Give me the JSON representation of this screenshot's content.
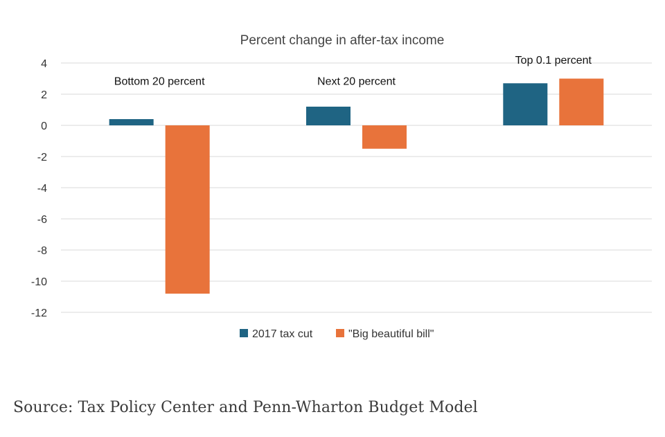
{
  "chart_data": {
    "type": "bar",
    "title": "Percent change in after-tax income",
    "categories": [
      "Bottom 20 percent",
      "Next 20 percent",
      "Top 0.1 percent"
    ],
    "series": [
      {
        "name": "2017 tax cut",
        "color": "#1f6483",
        "values": [
          0.4,
          1.2,
          2.7
        ]
      },
      {
        "name": "\"Big beautiful bill\"",
        "color": "#e8733b",
        "values": [
          -10.8,
          -1.5,
          3.0
        ]
      }
    ],
    "xlabel": "",
    "ylabel": "",
    "ylim": [
      -12,
      4
    ],
    "yticks": [
      4,
      2,
      0,
      -2,
      -4,
      -6,
      -8,
      -10,
      -12
    ],
    "grid": true,
    "legend": "bottom"
  },
  "source": "Source: Tax Policy Center and Penn-Wharton Budget Model"
}
